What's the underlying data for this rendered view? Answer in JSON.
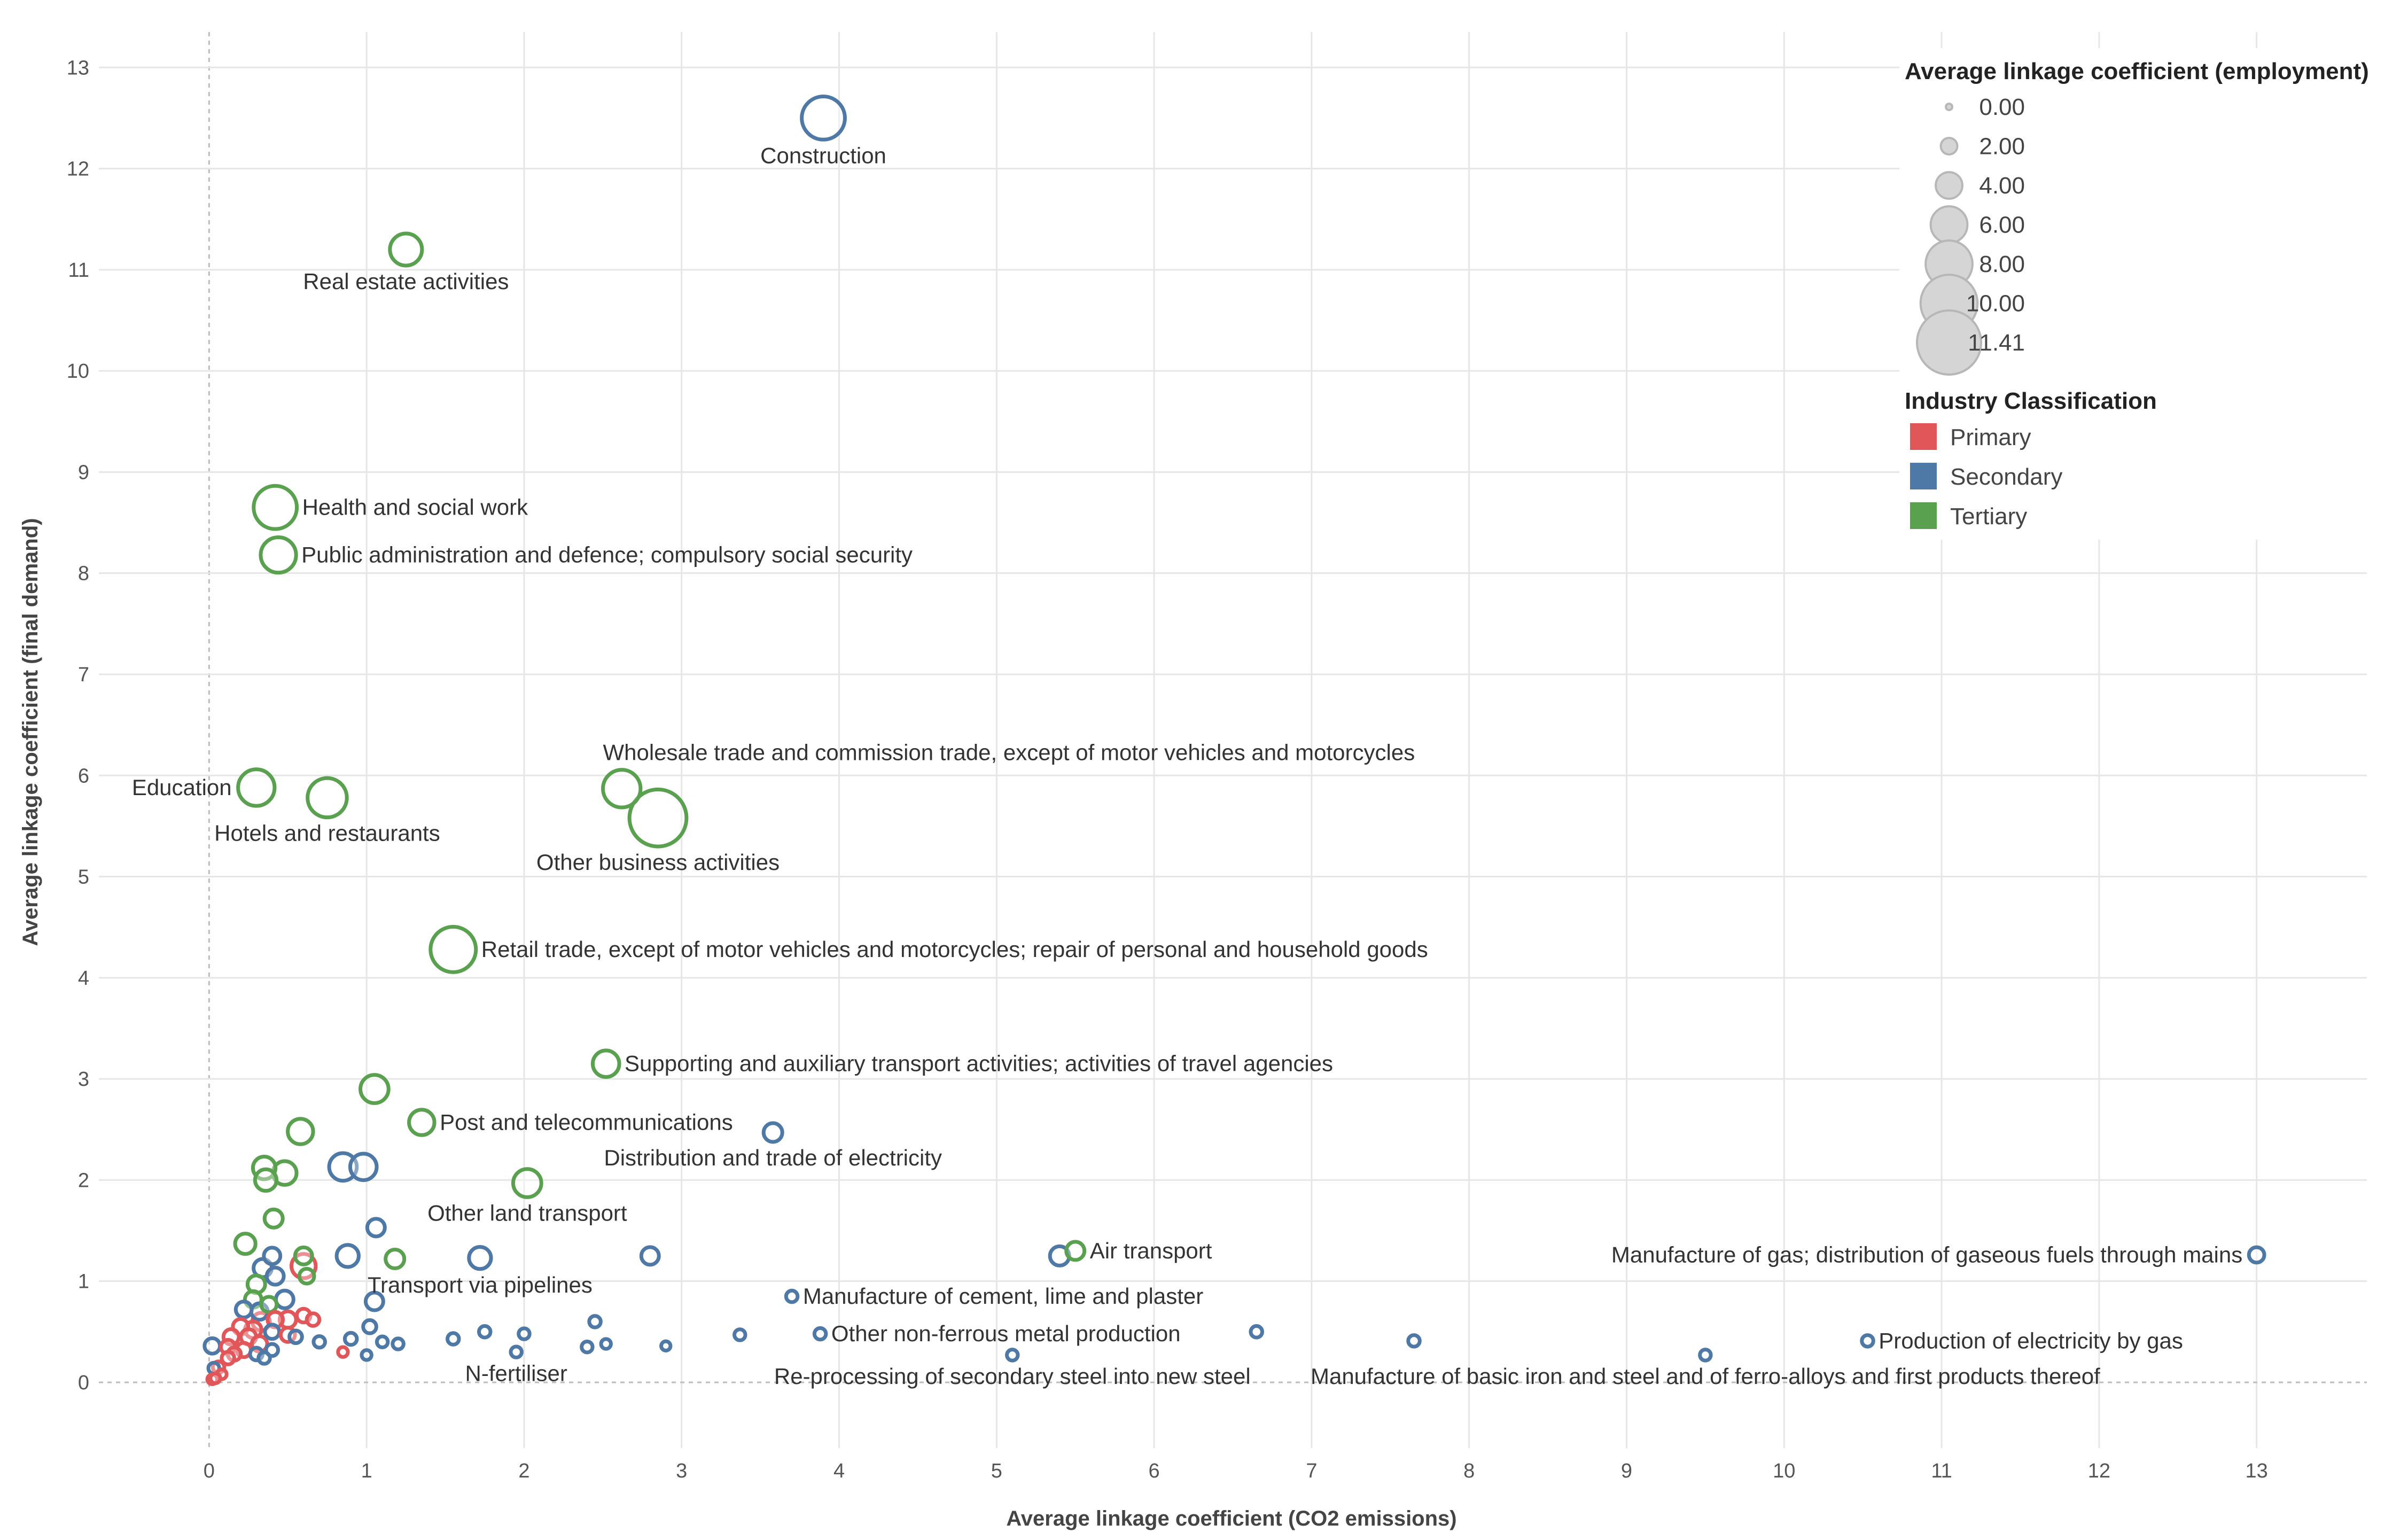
{
  "chart_data": {
    "type": "scatter",
    "title": "",
    "xlabel": "Average linkage coefficient (CO2 emissions)",
    "ylabel": "Average linkage coefficient (final demand)",
    "xlim": [
      -0.7,
      13.7
    ],
    "ylim": [
      -0.65,
      13.35
    ],
    "x_ticks": [
      0,
      1,
      2,
      3,
      4,
      5,
      6,
      7,
      8,
      9,
      10,
      11,
      12,
      13
    ],
    "y_ticks": [
      0,
      1,
      2,
      3,
      4,
      5,
      6,
      7,
      8,
      9,
      10,
      11,
      12,
      13
    ],
    "grid": true,
    "colors": {
      "Primary": "#e15759",
      "Secondary": "#4e79a7",
      "Tertiary": "#59a14f"
    },
    "size_legend": {
      "title": "Average linkage coefficient (employment)",
      "values": [
        0.0,
        2.0,
        4.0,
        6.0,
        8.0,
        10.0,
        11.41
      ],
      "labels": [
        "0.00",
        "2.00",
        "4.00",
        "6.00",
        "8.00",
        "10.00",
        "11.41"
      ]
    },
    "color_legend": {
      "title": "Industry Classification",
      "items": [
        "Primary",
        "Secondary",
        "Tertiary"
      ]
    },
    "points": [
      {
        "x": 3.9,
        "y": 12.5,
        "s": 7.0,
        "c": "Secondary",
        "label": "Construction",
        "lpos": "below"
      },
      {
        "x": 1.25,
        "y": 11.2,
        "s": 5.0,
        "c": "Tertiary",
        "label": "Real estate activities",
        "lpos": "below"
      },
      {
        "x": 0.42,
        "y": 8.65,
        "s": 7.0,
        "c": "Tertiary",
        "label": "Health and social work",
        "lpos": "right"
      },
      {
        "x": 0.44,
        "y": 8.18,
        "s": 5.6,
        "c": "Tertiary",
        "label": "Public administration and defence; compulsory social security",
        "lpos": "right"
      },
      {
        "x": 2.62,
        "y": 5.87,
        "s": 6.0,
        "c": "Tertiary",
        "label": "Wholesale trade and commission trade, except of motor vehicles and motorcycles",
        "lpos": "above"
      },
      {
        "x": 2.85,
        "y": 5.58,
        "s": 9.5,
        "c": "Tertiary",
        "label": "Other business activities",
        "lpos": "below"
      },
      {
        "x": 0.3,
        "y": 5.88,
        "s": 5.8,
        "c": "Tertiary",
        "label": "Education",
        "lpos": "left"
      },
      {
        "x": 0.75,
        "y": 5.78,
        "s": 6.3,
        "c": "Tertiary",
        "label": "Hotels and restaurants",
        "lpos": "below"
      },
      {
        "x": 1.55,
        "y": 4.28,
        "s": 7.4,
        "c": "Tertiary",
        "label": "Retail trade, except of motor vehicles and motorcycles; repair of personal and household goods",
        "lpos": "right"
      },
      {
        "x": 2.52,
        "y": 3.15,
        "s": 4.0,
        "c": "Tertiary",
        "label": "Supporting and auxiliary transport activities; activities of travel agencies",
        "lpos": "right"
      },
      {
        "x": 1.05,
        "y": 2.9,
        "s": 4.3,
        "c": "Tertiary"
      },
      {
        "x": 1.35,
        "y": 2.57,
        "s": 3.8,
        "c": "Tertiary",
        "label": "Post and telecommunications",
        "lpos": "right"
      },
      {
        "x": 3.58,
        "y": 2.47,
        "s": 2.6,
        "c": "Secondary",
        "label": "Distribution and trade of electricity",
        "lpos": "below"
      },
      {
        "x": 0.58,
        "y": 2.48,
        "s": 3.8,
        "c": "Tertiary"
      },
      {
        "x": 0.35,
        "y": 2.12,
        "s": 3.3,
        "c": "Tertiary"
      },
      {
        "x": 0.48,
        "y": 2.07,
        "s": 3.5,
        "c": "Tertiary"
      },
      {
        "x": 0.36,
        "y": 2.0,
        "s": 3.1,
        "c": "Tertiary"
      },
      {
        "x": 0.85,
        "y": 2.13,
        "s": 4.2,
        "c": "Secondary"
      },
      {
        "x": 0.98,
        "y": 2.13,
        "s": 4.0,
        "c": "Secondary"
      },
      {
        "x": 2.02,
        "y": 1.97,
        "s": 4.3,
        "c": "Tertiary",
        "label": "Other land transport",
        "lpos": "below"
      },
      {
        "x": 0.41,
        "y": 1.62,
        "s": 2.5,
        "c": "Tertiary"
      },
      {
        "x": 1.06,
        "y": 1.53,
        "s": 2.4,
        "c": "Secondary"
      },
      {
        "x": 0.23,
        "y": 1.37,
        "s": 2.9,
        "c": "Tertiary"
      },
      {
        "x": 5.5,
        "y": 1.3,
        "s": 2.5,
        "c": "Tertiary",
        "label": "Air transport",
        "lpos": "right"
      },
      {
        "x": 5.4,
        "y": 1.25,
        "s": 2.7,
        "c": "Secondary"
      },
      {
        "x": 13.0,
        "y": 1.26,
        "s": 2.0,
        "c": "Secondary",
        "label": "Manufacture of gas; distribution of gaseous fuels through mains",
        "lpos": "left"
      },
      {
        "x": 1.72,
        "y": 1.23,
        "s": 3.2,
        "c": "Secondary",
        "label": "Transport via pipelines",
        "lpos": "below"
      },
      {
        "x": 2.8,
        "y": 1.25,
        "s": 2.4,
        "c": "Secondary"
      },
      {
        "x": 0.88,
        "y": 1.25,
        "s": 3.2,
        "c": "Secondary"
      },
      {
        "x": 1.18,
        "y": 1.22,
        "s": 2.6,
        "c": "Tertiary"
      },
      {
        "x": 0.6,
        "y": 1.25,
        "s": 2.3,
        "c": "Tertiary"
      },
      {
        "x": 0.4,
        "y": 1.25,
        "s": 2.2,
        "c": "Secondary"
      },
      {
        "x": 0.6,
        "y": 1.15,
        "s": 3.6,
        "c": "Primary"
      },
      {
        "x": 0.34,
        "y": 1.13,
        "s": 2.5,
        "c": "Secondary"
      },
      {
        "x": 0.42,
        "y": 1.05,
        "s": 2.3,
        "c": "Secondary"
      },
      {
        "x": 0.62,
        "y": 1.05,
        "s": 1.9,
        "c": "Tertiary"
      },
      {
        "x": 0.3,
        "y": 0.97,
        "s": 2.4,
        "c": "Tertiary"
      },
      {
        "x": 3.7,
        "y": 0.85,
        "s": 1.3,
        "c": "Secondary",
        "label": "Manufacture of cement, lime and plaster",
        "lpos": "right"
      },
      {
        "x": 1.05,
        "y": 0.8,
        "s": 2.4,
        "c": "Secondary"
      },
      {
        "x": 0.48,
        "y": 0.82,
        "s": 2.4,
        "c": "Secondary"
      },
      {
        "x": 0.28,
        "y": 0.82,
        "s": 2.2,
        "c": "Tertiary"
      },
      {
        "x": 0.38,
        "y": 0.77,
        "s": 2.0,
        "c": "Tertiary"
      },
      {
        "x": 0.22,
        "y": 0.72,
        "s": 2.1,
        "c": "Secondary"
      },
      {
        "x": 0.32,
        "y": 0.7,
        "s": 2.2,
        "c": "Secondary"
      },
      {
        "x": 0.6,
        "y": 0.66,
        "s": 1.7,
        "c": "Primary"
      },
      {
        "x": 0.66,
        "y": 0.62,
        "s": 1.5,
        "c": "Primary"
      },
      {
        "x": 0.5,
        "y": 0.62,
        "s": 2.2,
        "c": "Primary"
      },
      {
        "x": 0.42,
        "y": 0.62,
        "s": 2.0,
        "c": "Primary"
      },
      {
        "x": 0.33,
        "y": 0.6,
        "s": 2.4,
        "c": "Primary"
      },
      {
        "x": 2.45,
        "y": 0.6,
        "s": 1.3,
        "c": "Secondary"
      },
      {
        "x": 1.02,
        "y": 0.55,
        "s": 1.6,
        "c": "Secondary"
      },
      {
        "x": 0.2,
        "y": 0.55,
        "s": 2.0,
        "c": "Primary"
      },
      {
        "x": 0.28,
        "y": 0.52,
        "s": 2.2,
        "c": "Primary"
      },
      {
        "x": 0.4,
        "y": 0.5,
        "s": 1.8,
        "c": "Secondary"
      },
      {
        "x": 0.14,
        "y": 0.45,
        "s": 2.0,
        "c": "Primary"
      },
      {
        "x": 1.75,
        "y": 0.5,
        "s": 1.3,
        "c": "Secondary"
      },
      {
        "x": 2.0,
        "y": 0.48,
        "s": 1.2,
        "c": "Secondary"
      },
      {
        "x": 3.88,
        "y": 0.48,
        "s": 1.3,
        "c": "Secondary",
        "label": "Other non-ferrous metal production",
        "lpos": "right"
      },
      {
        "x": 6.65,
        "y": 0.5,
        "s": 1.3,
        "c": "Secondary"
      },
      {
        "x": 3.37,
        "y": 0.47,
        "s": 1.2,
        "c": "Secondary"
      },
      {
        "x": 0.5,
        "y": 0.47,
        "s": 1.8,
        "c": "Primary"
      },
      {
        "x": 0.25,
        "y": 0.45,
        "s": 2.0,
        "c": "Primary"
      },
      {
        "x": 0.55,
        "y": 0.45,
        "s": 1.5,
        "c": "Secondary"
      },
      {
        "x": 0.9,
        "y": 0.43,
        "s": 1.4,
        "c": "Secondary"
      },
      {
        "x": 1.55,
        "y": 0.43,
        "s": 1.3,
        "c": "Secondary"
      },
      {
        "x": 1.1,
        "y": 0.4,
        "s": 1.2,
        "c": "Secondary"
      },
      {
        "x": 1.2,
        "y": 0.38,
        "s": 1.2,
        "c": "Secondary"
      },
      {
        "x": 7.65,
        "y": 0.41,
        "s": 1.3,
        "c": "Secondary"
      },
      {
        "x": 10.53,
        "y": 0.41,
        "s": 1.3,
        "c": "Secondary",
        "label": "Production of electricity by gas",
        "lpos": "right"
      },
      {
        "x": 0.7,
        "y": 0.4,
        "s": 1.3,
        "c": "Secondary"
      },
      {
        "x": 0.32,
        "y": 0.38,
        "s": 2.0,
        "c": "Primary"
      },
      {
        "x": 0.12,
        "y": 0.35,
        "s": 1.8,
        "c": "Primary"
      },
      {
        "x": 0.02,
        "y": 0.36,
        "s": 2.0,
        "c": "Secondary"
      },
      {
        "x": 2.52,
        "y": 0.38,
        "s": 1.0,
        "c": "Secondary"
      },
      {
        "x": 2.9,
        "y": 0.36,
        "s": 0.9,
        "c": "Secondary"
      },
      {
        "x": 2.4,
        "y": 0.35,
        "s": 1.2,
        "c": "Secondary"
      },
      {
        "x": 0.22,
        "y": 0.32,
        "s": 1.8,
        "c": "Primary"
      },
      {
        "x": 0.4,
        "y": 0.32,
        "s": 1.4,
        "c": "Secondary"
      },
      {
        "x": 0.85,
        "y": 0.3,
        "s": 1.0,
        "c": "Primary"
      },
      {
        "x": 1.95,
        "y": 0.3,
        "s": 1.2,
        "c": "Secondary",
        "label": "N-fertiliser",
        "lpos": "below"
      },
      {
        "x": 0.16,
        "y": 0.28,
        "s": 1.6,
        "c": "Primary"
      },
      {
        "x": 0.3,
        "y": 0.28,
        "s": 1.5,
        "c": "Secondary"
      },
      {
        "x": 5.1,
        "y": 0.27,
        "s": 1.2,
        "c": "Secondary",
        "label": "Re-processing of secondary steel into new steel",
        "lpos": "below"
      },
      {
        "x": 9.5,
        "y": 0.27,
        "s": 1.2,
        "c": "Secondary",
        "label": "Manufacture of basic iron and steel and of ferro-alloys and first products thereof",
        "lpos": "below"
      },
      {
        "x": 1.0,
        "y": 0.27,
        "s": 1.0,
        "c": "Secondary"
      },
      {
        "x": 0.12,
        "y": 0.24,
        "s": 1.5,
        "c": "Primary"
      },
      {
        "x": 0.35,
        "y": 0.24,
        "s": 1.3,
        "c": "Secondary"
      },
      {
        "x": 0.06,
        "y": 0.15,
        "s": 1.3,
        "c": "Primary"
      },
      {
        "x": 0.03,
        "y": 0.14,
        "s": 1.2,
        "c": "Secondary"
      },
      {
        "x": 0.08,
        "y": 0.08,
        "s": 1.0,
        "c": "Primary"
      },
      {
        "x": 0.02,
        "y": 0.03,
        "s": 1.0,
        "c": "Primary"
      },
      {
        "x": 0.04,
        "y": 0.04,
        "s": 1.0,
        "c": "Primary"
      }
    ]
  }
}
